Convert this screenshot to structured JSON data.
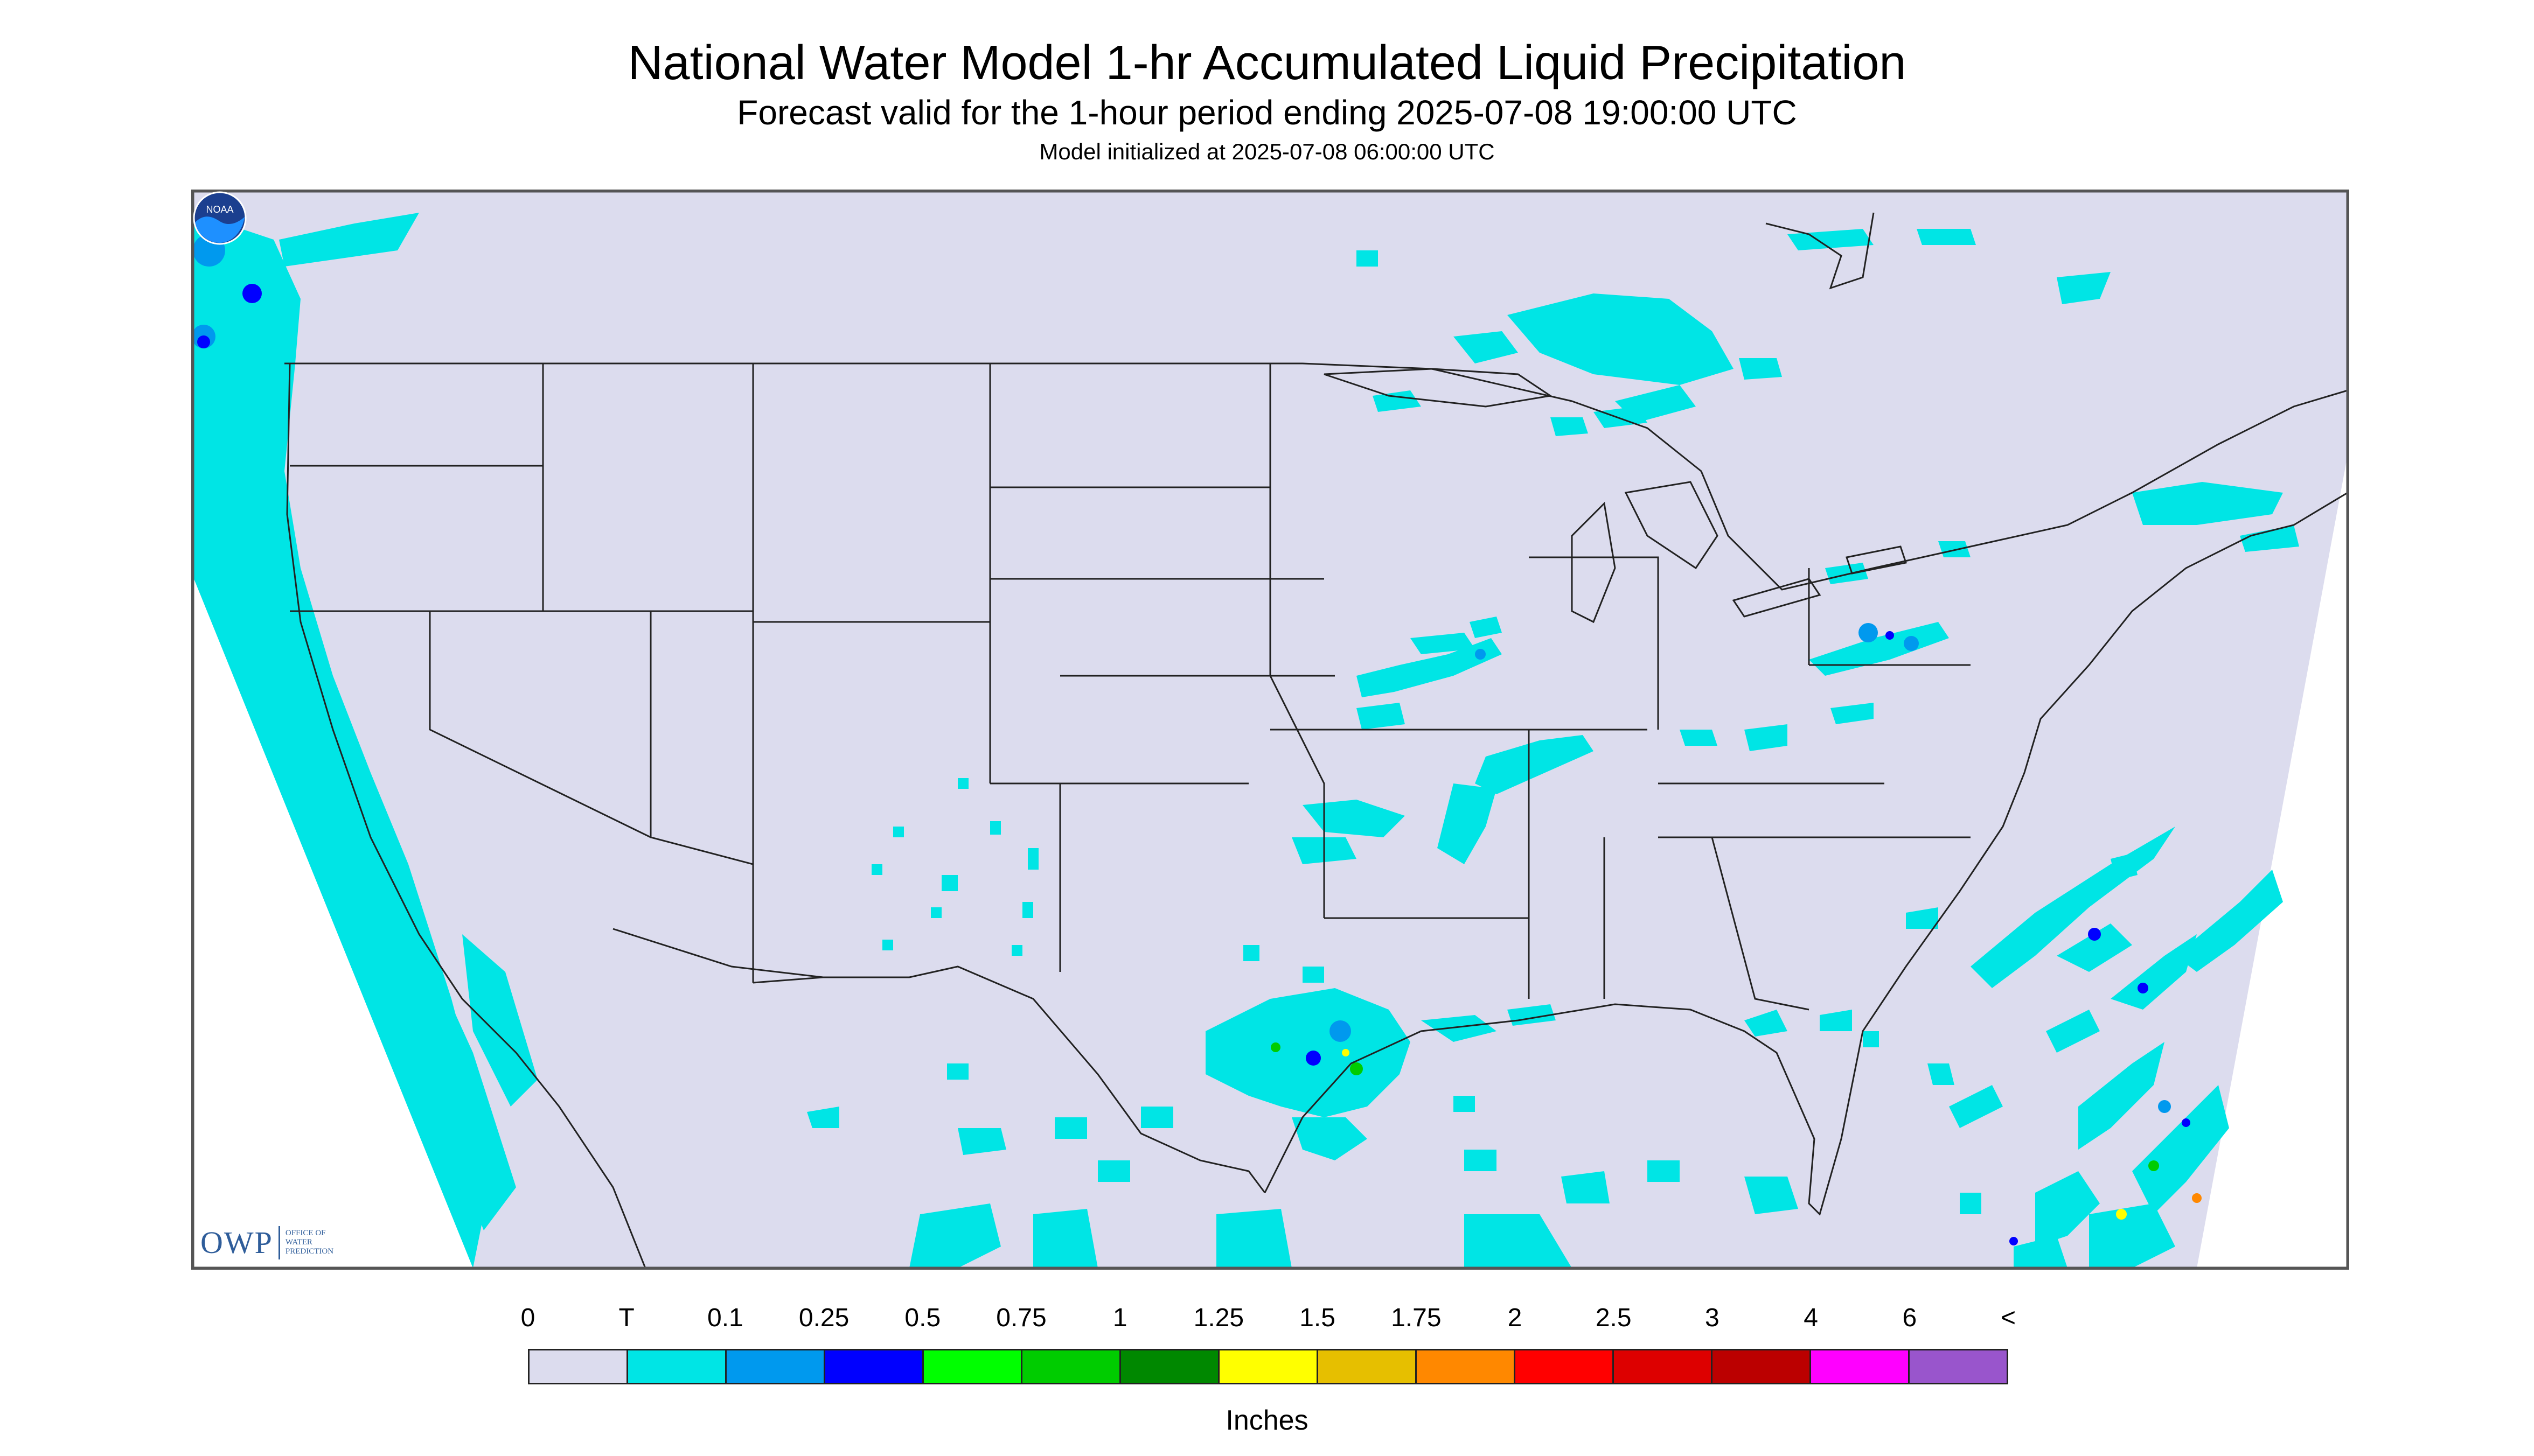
{
  "title": "National Water Model 1-hr Accumulated Liquid Precipitation",
  "subtitle": "Forecast valid for the 1-hour period ending 2025-07-08 19:00:00 UTC",
  "init_line": "Model initialized at 2025-07-08 06:00:00 UTC",
  "logos": {
    "owp_mark": "OWP",
    "owp_text": "OFFICE OF WATER PREDICTION",
    "noaa_mark": "NOAA"
  },
  "legend": {
    "units": "Inches",
    "tick_labels": [
      "0",
      "T",
      "0.1",
      "0.25",
      "0.5",
      "0.75",
      "1",
      "1.25",
      "1.5",
      "1.75",
      "2",
      "2.5",
      "3",
      "4",
      "6",
      "<"
    ],
    "bins": [
      {
        "color": "#dcdcee"
      },
      {
        "color": "#00e5e5"
      },
      {
        "color": "#0099ee"
      },
      {
        "color": "#0000ff"
      },
      {
        "color": "#00ff00"
      },
      {
        "color": "#00cc00"
      },
      {
        "color": "#008800"
      },
      {
        "color": "#ffff00"
      },
      {
        "color": "#e6bf00"
      },
      {
        "color": "#ff8800"
      },
      {
        "color": "#ff0000"
      },
      {
        "color": "#dd0000"
      },
      {
        "color": "#bb0000"
      },
      {
        "color": "#ff00ff"
      },
      {
        "color": "#9955cc"
      }
    ]
  },
  "map_colors": {
    "domain_fill": "#dcdcee",
    "outside_fill": "#ffffff",
    "trace": "#00e5e5",
    "light": "#0099ee",
    "moderate": "#0000ff",
    "heavy": "#00cc00",
    "extreme": "#ffff00",
    "border": "#222222"
  }
}
